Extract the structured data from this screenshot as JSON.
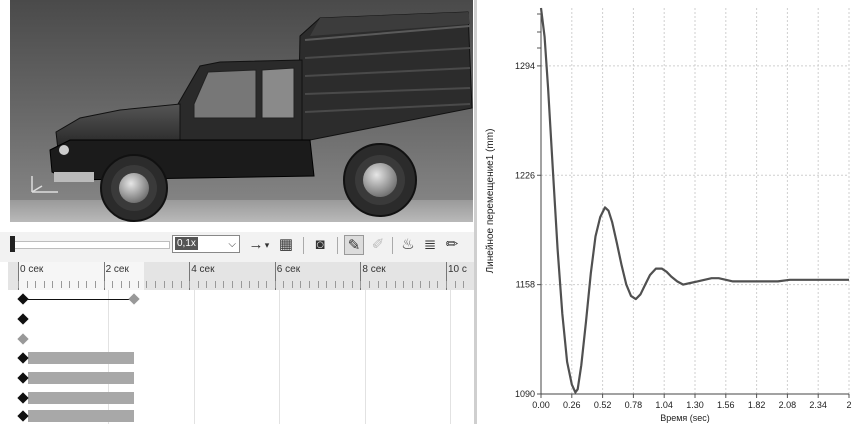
{
  "toolbar": {
    "speed_value": "0,1x",
    "icons": [
      "play-arrow-icon",
      "dropdown-icon",
      "film-icon",
      "camera-icon",
      "brush-icon",
      "disabled-brush-icon",
      "pot-icon",
      "layers-icon",
      "pencil-icon"
    ]
  },
  "timeline": {
    "ruler_labels": [
      "0 сек",
      "2 сек",
      "4 сек",
      "6 сек",
      "8 сек",
      "10 с"
    ]
  },
  "chart_data": {
    "type": "line",
    "xlabel": "Время (sec)",
    "ylabel": "Линейное перемещение1 (mm)",
    "xlim": [
      0,
      2.6
    ],
    "ylim": [
      1090,
      1330
    ],
    "xticks": [
      "0.00",
      "0.26",
      "0.52",
      "0.78",
      "1.04",
      "1.30",
      "1.56",
      "1.82",
      "2.08",
      "2.34",
      "2"
    ],
    "yticks": [
      "1294",
      "1226",
      "1158",
      "1090"
    ],
    "grid": true,
    "color": "#505050",
    "series": [
      {
        "x": [
          0.0,
          0.03,
          0.06,
          0.1,
          0.14,
          0.18,
          0.22,
          0.26,
          0.29,
          0.31,
          0.34,
          0.38,
          0.42,
          0.46,
          0.5,
          0.54,
          0.57,
          0.6,
          0.64,
          0.68,
          0.72,
          0.76,
          0.8,
          0.84,
          0.88,
          0.92,
          0.97,
          1.02,
          1.06,
          1.1,
          1.15,
          1.2,
          1.26,
          1.32,
          1.38,
          1.44,
          1.5,
          1.56,
          1.62,
          1.7,
          1.8,
          1.9,
          2.0,
          2.1,
          2.2,
          2.3,
          2.4,
          2.5,
          2.6
        ],
        "y": [
          1330,
          1312,
          1280,
          1230,
          1180,
          1140,
          1110,
          1096,
          1091,
          1093,
          1108,
          1135,
          1165,
          1188,
          1200,
          1206,
          1204,
          1197,
          1184,
          1170,
          1158,
          1151,
          1149,
          1152,
          1158,
          1164,
          1168,
          1168,
          1166,
          1163,
          1160,
          1158,
          1159,
          1160,
          1161,
          1162,
          1162,
          1161,
          1160,
          1160,
          1160,
          1160,
          1160,
          1161,
          1161,
          1161,
          1161,
          1161,
          1161
        ]
      }
    ]
  }
}
